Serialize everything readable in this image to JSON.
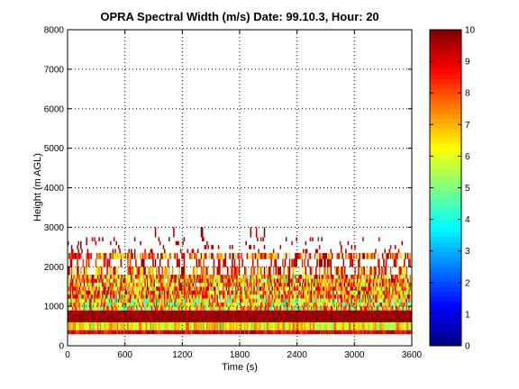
{
  "chart_data": {
    "type": "heatmap",
    "title": "OPRA Spectral Width (m/s)  Date: 99.10.3, Hour: 20",
    "xlabel": "Time (s)",
    "ylabel": "Height (m AGL)",
    "xlim": [
      0,
      3600
    ],
    "ylim": [
      0,
      8000
    ],
    "xticks": [
      0,
      600,
      1200,
      1800,
      2400,
      3000,
      3600
    ],
    "yticks": [
      0,
      1000,
      2000,
      3000,
      4000,
      5000,
      6000,
      7000,
      8000
    ],
    "colorbar": {
      "min": 0,
      "max": 10,
      "ticks": [
        0,
        1,
        2,
        3,
        4,
        5,
        6,
        7,
        8,
        9,
        10
      ],
      "colormap": "jet"
    },
    "grid": true,
    "bands": [
      {
        "y_range": [
          300,
          400
        ],
        "value_range": [
          8,
          10
        ],
        "coverage": 1.0
      },
      {
        "y_range": [
          400,
          600
        ],
        "value_range": [
          5,
          8
        ],
        "coverage": 1.0
      },
      {
        "y_range": [
          600,
          900
        ],
        "value_range": [
          9.5,
          10
        ],
        "coverage": 1.0
      },
      {
        "y_range": [
          900,
          1200
        ],
        "value_range": [
          4,
          9
        ],
        "coverage": 0.95
      },
      {
        "y_range": [
          1200,
          1800
        ],
        "value_range": [
          5,
          10
        ],
        "coverage": 0.92
      },
      {
        "y_range": [
          1800,
          2000
        ],
        "value_range": [
          6,
          10
        ],
        "coverage": 0.5
      },
      {
        "y_range": [
          2000,
          2200
        ],
        "value_range": [
          8,
          10
        ],
        "coverage": 0.25
      },
      {
        "y_range": [
          2200,
          2350
        ],
        "value_range": [
          6,
          10
        ],
        "coverage": 0.6
      },
      {
        "y_range": [
          2350,
          2750
        ],
        "value_range": [
          9,
          10
        ],
        "coverage": 0.08
      },
      {
        "y_range": [
          2750,
          3000
        ],
        "value_range": [
          9,
          10
        ],
        "coverage": 0.015
      }
    ]
  }
}
